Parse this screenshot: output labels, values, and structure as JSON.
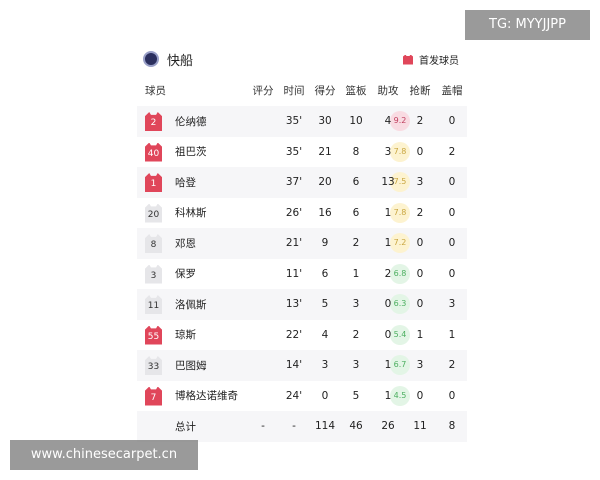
{
  "team": {
    "name": "快船",
    "legend": "首发球员"
  },
  "columns": [
    "球员",
    "评分",
    "时间",
    "得分",
    "篮板",
    "助攻",
    "抢断",
    "盖帽"
  ],
  "players": [
    {
      "no": "2",
      "name": "伦纳德",
      "rating": "9.2",
      "min": "35'",
      "pts": "30",
      "reb": "10",
      "ast": "4",
      "stl": "2",
      "blk": "0",
      "starter": true
    },
    {
      "no": "40",
      "name": "祖巴茨",
      "rating": "7.8",
      "min": "35'",
      "pts": "21",
      "reb": "8",
      "ast": "3",
      "stl": "0",
      "blk": "2",
      "starter": true
    },
    {
      "no": "1",
      "name": "哈登",
      "rating": "7.5",
      "min": "37'",
      "pts": "20",
      "reb": "6",
      "ast": "13",
      "stl": "3",
      "blk": "0",
      "starter": true
    },
    {
      "no": "20",
      "name": "科林斯",
      "rating": "7.8",
      "min": "26'",
      "pts": "16",
      "reb": "6",
      "ast": "1",
      "stl": "2",
      "blk": "0",
      "starter": false
    },
    {
      "no": "8",
      "name": "邓恩",
      "rating": "7.2",
      "min": "21'",
      "pts": "9",
      "reb": "2",
      "ast": "1",
      "stl": "0",
      "blk": "0",
      "starter": false
    },
    {
      "no": "3",
      "name": "保罗",
      "rating": "6.8",
      "min": "11'",
      "pts": "6",
      "reb": "1",
      "ast": "2",
      "stl": "0",
      "blk": "0",
      "starter": false
    },
    {
      "no": "11",
      "name": "洛佩斯",
      "rating": "6.3",
      "min": "13'",
      "pts": "5",
      "reb": "3",
      "ast": "0",
      "stl": "0",
      "blk": "3",
      "starter": false
    },
    {
      "no": "55",
      "name": "琼斯",
      "rating": "5.4",
      "min": "22'",
      "pts": "4",
      "reb": "2",
      "ast": "0",
      "stl": "1",
      "blk": "1",
      "starter": true
    },
    {
      "no": "33",
      "name": "巴图姆",
      "rating": "6.7",
      "min": "14'",
      "pts": "3",
      "reb": "3",
      "ast": "1",
      "stl": "3",
      "blk": "2",
      "starter": false
    },
    {
      "no": "7",
      "name": "博格达诺维奇",
      "rating": "4.5",
      "min": "24'",
      "pts": "0",
      "reb": "5",
      "ast": "1",
      "stl": "0",
      "blk": "0",
      "starter": true
    }
  ],
  "total": {
    "label": "总计",
    "rating": "-",
    "min": "-",
    "pts": "114",
    "reb": "46",
    "ast": "26",
    "stl": "11",
    "blk": "8"
  },
  "colors": {
    "starter": "#e0465a",
    "rating_high": "#f9dbe2",
    "rating_mid": "#fdf3d0",
    "rating_low": "#e3f5e6"
  },
  "watermarks": {
    "top": "TG: MYYJJPP",
    "bottom": "www.chinesecarpet.cn"
  }
}
